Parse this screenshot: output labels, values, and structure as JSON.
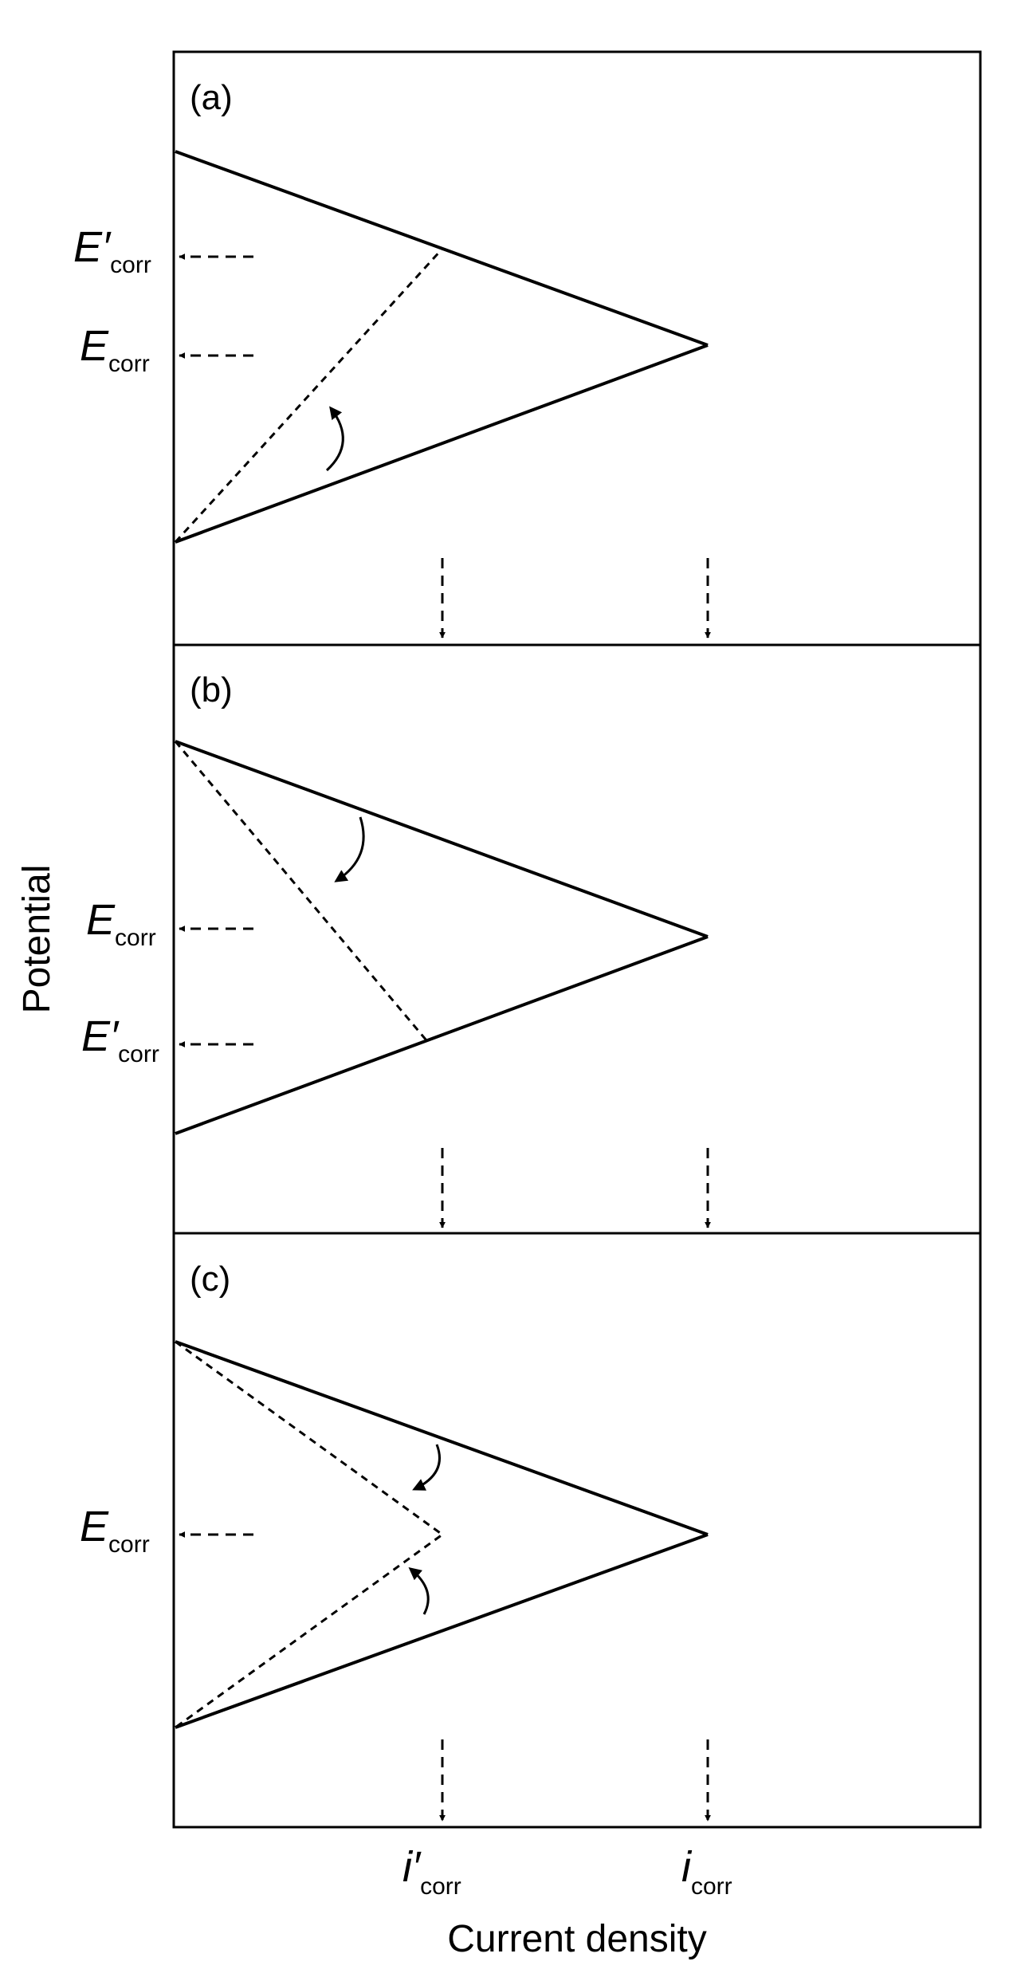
{
  "y_axis_label": "Potential",
  "x_axis_label": "Current density",
  "panels": [
    {
      "label": "(a)",
      "markers": [
        {
          "symbol": "E",
          "prime": "′",
          "subscript": "corr"
        },
        {
          "symbol": "E",
          "prime": "",
          "subscript": "corr"
        }
      ]
    },
    {
      "label": "(b)",
      "markers": [
        {
          "symbol": "E",
          "prime": "",
          "subscript": "corr"
        },
        {
          "symbol": "E",
          "prime": "′",
          "subscript": "corr"
        }
      ]
    },
    {
      "label": "(c)",
      "markers": [
        {
          "symbol": "E",
          "prime": "",
          "subscript": "corr"
        }
      ]
    }
  ],
  "x_markers": [
    {
      "symbol": "i",
      "prime": "′",
      "subscript": "corr"
    },
    {
      "symbol": "i",
      "prime": "",
      "subscript": "corr"
    }
  ]
}
